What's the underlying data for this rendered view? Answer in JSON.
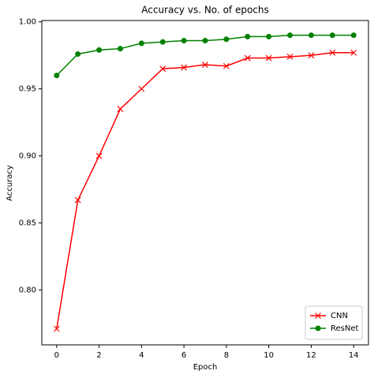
{
  "chart_data": {
    "type": "line",
    "title": "Accuracy vs. No. of epochs",
    "x_label": "Epoch",
    "y_label": "Accuracy",
    "x": [
      0,
      1,
      2,
      3,
      4,
      5,
      6,
      7,
      8,
      9,
      10,
      11,
      12,
      13,
      14
    ],
    "series": [
      {
        "name": "CNN",
        "color": "#ff0000",
        "marker": "x",
        "values": [
          0.771,
          0.867,
          0.9,
          0.935,
          0.95,
          0.965,
          0.966,
          0.968,
          0.967,
          0.973,
          0.973,
          0.974,
          0.975,
          0.977,
          0.977
        ]
      },
      {
        "name": "ResNet",
        "color": "#008000",
        "marker": "o",
        "values": [
          0.96,
          0.976,
          0.979,
          0.98,
          0.984,
          0.985,
          0.986,
          0.986,
          0.987,
          0.989,
          0.989,
          0.99,
          0.99,
          0.99,
          0.99
        ]
      }
    ],
    "xlim": [
      -0.7,
      14.7
    ],
    "xticks": [
      0,
      2,
      4,
      6,
      8,
      10,
      12,
      14
    ],
    "ylim": [
      0.759,
      1.001
    ],
    "yticks": [
      {
        "value": 0.8,
        "label": "0.80"
      },
      {
        "value": 0.85,
        "label": "0.85"
      },
      {
        "value": 0.9,
        "label": "0.90"
      },
      {
        "value": 0.95,
        "label": "0.95"
      },
      {
        "value": 1.0,
        "label": "1.00"
      }
    ],
    "legend": "lower right"
  }
}
